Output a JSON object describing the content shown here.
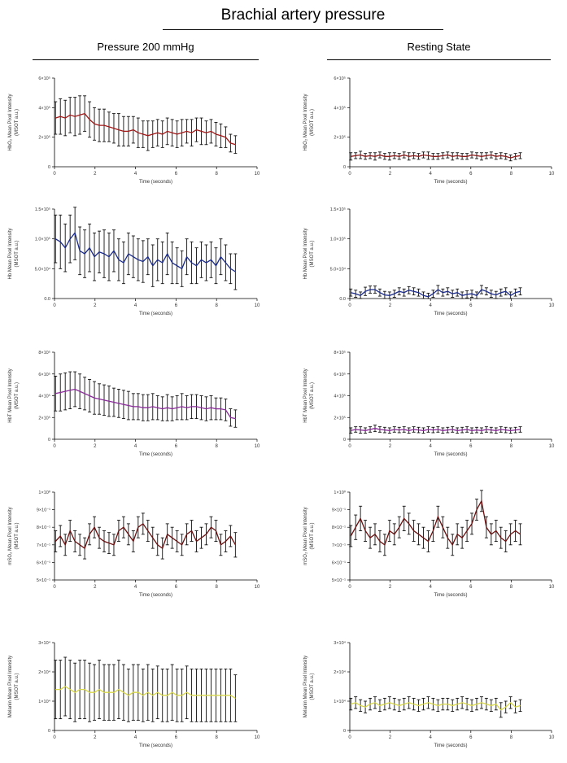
{
  "title": "Brachial artery pressure",
  "columns": [
    "Pressure 200 mmHg",
    "Resting State"
  ],
  "chart_data": [
    {
      "type": "line",
      "column": 0,
      "color": "#a01818",
      "ylabel": [
        "HbO₂ Mean Pixel Intensity",
        "(MSOT a.u.)"
      ],
      "xlabel": "Time (seconds)",
      "xlim": [
        0,
        10
      ],
      "ylim": [
        0,
        6
      ],
      "x_ticks": [
        "0",
        "2",
        "4",
        "6",
        "8",
        "10"
      ],
      "y_ticks": [
        "0",
        "2×10⁵",
        "4×10⁵",
        "6×10⁵"
      ],
      "y_tick_values": [
        0,
        2,
        4,
        6
      ],
      "series_y": [
        3.3,
        3.4,
        3.3,
        3.5,
        3.4,
        3.5,
        3.6,
        3.2,
        2.9,
        2.8,
        2.8,
        2.7,
        2.6,
        2.5,
        2.4,
        2.4,
        2.5,
        2.3,
        2.2,
        2.1,
        2.2,
        2.3,
        2.2,
        2.4,
        2.3,
        2.2,
        2.3,
        2.4,
        2.3,
        2.5,
        2.4,
        2.3,
        2.4,
        2.2,
        2.1,
        2.0,
        1.6,
        1.5
      ],
      "err": [
        1.1,
        1.2,
        1.2,
        1.2,
        1.3,
        1.3,
        1.2,
        1.2,
        1.1,
        1.1,
        1.1,
        1.0,
        1.0,
        1.1,
        1.0,
        1.0,
        0.9,
        1.0,
        0.9,
        1.0,
        0.9,
        0.9,
        0.9,
        0.9,
        0.9,
        0.9,
        0.9,
        0.8,
        0.9,
        0.8,
        0.9,
        0.8,
        0.8,
        0.8,
        0.8,
        0.7,
        0.6,
        0.6
      ]
    },
    {
      "type": "line",
      "column": 1,
      "color": "#8b1a1a",
      "ylabel": [
        "HbO₂ Mean Pixel Intensity",
        "(MSOT a.u.)"
      ],
      "xlabel": "Time (seconds)",
      "xlim": [
        0,
        10
      ],
      "ylim": [
        0,
        6
      ],
      "x_ticks": [
        "0",
        "2",
        "4",
        "6",
        "8",
        "10"
      ],
      "y_ticks": [
        "0",
        "2×10⁵",
        "4×10⁵",
        "6×10⁵"
      ],
      "y_tick_values": [
        0,
        2,
        4,
        6
      ],
      "series_y": [
        0.7,
        0.75,
        0.8,
        0.7,
        0.75,
        0.7,
        0.8,
        0.7,
        0.7,
        0.75,
        0.7,
        0.8,
        0.7,
        0.75,
        0.7,
        0.8,
        0.75,
        0.7,
        0.7,
        0.75,
        0.8,
        0.7,
        0.75,
        0.7,
        0.7,
        0.8,
        0.75,
        0.7,
        0.75,
        0.8,
        0.7,
        0.75,
        0.7,
        0.6,
        0.7,
        0.75
      ],
      "err": [
        0.25,
        0.2,
        0.25,
        0.2,
        0.2,
        0.25,
        0.2,
        0.2,
        0.25,
        0.2,
        0.2,
        0.2,
        0.25,
        0.2,
        0.2,
        0.2,
        0.25,
        0.2,
        0.2,
        0.2,
        0.2,
        0.25,
        0.2,
        0.2,
        0.2,
        0.2,
        0.2,
        0.25,
        0.2,
        0.2,
        0.2,
        0.2,
        0.2,
        0.2,
        0.2,
        0.2
      ]
    },
    {
      "type": "line",
      "column": 0,
      "color": "#1a2a8a",
      "ylabel": [
        "Hb Mean Pixel Intensity",
        "(MSOT a.u.)"
      ],
      "xlabel": "Time (seconds)",
      "xlim": [
        0,
        10
      ],
      "ylim": [
        0,
        1.5
      ],
      "x_ticks": [
        "0",
        "2",
        "4",
        "6",
        "8",
        "10"
      ],
      "y_ticks": [
        "0.0",
        "5.0×10⁴",
        "1.0×10⁵",
        "1.5×10⁵"
      ],
      "y_tick_values": [
        0,
        0.5,
        1.0,
        1.5
      ],
      "series_y": [
        1.0,
        0.95,
        0.85,
        1.0,
        1.1,
        0.8,
        0.75,
        0.85,
        0.7,
        0.78,
        0.75,
        0.7,
        0.8,
        0.65,
        0.6,
        0.75,
        0.7,
        0.65,
        0.62,
        0.7,
        0.55,
        0.65,
        0.6,
        0.75,
        0.6,
        0.55,
        0.5,
        0.7,
        0.6,
        0.55,
        0.65,
        0.6,
        0.65,
        0.55,
        0.7,
        0.6,
        0.5,
        0.45
      ],
      "err": [
        0.4,
        0.45,
        0.4,
        0.4,
        0.45,
        0.4,
        0.4,
        0.4,
        0.4,
        0.35,
        0.4,
        0.4,
        0.35,
        0.35,
        0.35,
        0.35,
        0.35,
        0.35,
        0.35,
        0.3,
        0.35,
        0.35,
        0.35,
        0.35,
        0.35,
        0.3,
        0.3,
        0.3,
        0.35,
        0.3,
        0.3,
        0.3,
        0.3,
        0.3,
        0.3,
        0.3,
        0.25,
        0.3
      ]
    },
    {
      "type": "line",
      "column": 1,
      "color": "#1a2a8a",
      "ylabel": [
        "Hb Mean Pixel Intensity",
        "(MSOT a.u.)"
      ],
      "xlabel": "Time (seconds)",
      "xlim": [
        0,
        10
      ],
      "ylim": [
        0,
        1.5
      ],
      "x_ticks": [
        "0",
        "2",
        "4",
        "6",
        "8",
        "10"
      ],
      "y_ticks": [
        "0.0",
        "5.0×10⁴",
        "1.0×10⁵",
        "1.5×10⁵"
      ],
      "y_tick_values": [
        0,
        0.5,
        1.0,
        1.5
      ],
      "series_y": [
        0.1,
        0.08,
        0.05,
        0.12,
        0.15,
        0.15,
        0.1,
        0.06,
        0.05,
        0.08,
        0.12,
        0.1,
        0.14,
        0.12,
        0.1,
        0.05,
        0.03,
        0.08,
        0.15,
        0.1,
        0.12,
        0.08,
        0.1,
        0.05,
        0.07,
        0.08,
        0.05,
        0.15,
        0.12,
        0.08,
        0.06,
        0.1,
        0.12,
        0.05,
        0.1,
        0.12
      ],
      "err": [
        0.06,
        0.06,
        0.06,
        0.07,
        0.06,
        0.06,
        0.06,
        0.06,
        0.06,
        0.06,
        0.06,
        0.06,
        0.06,
        0.06,
        0.06,
        0.06,
        0.06,
        0.06,
        0.07,
        0.06,
        0.06,
        0.06,
        0.06,
        0.06,
        0.06,
        0.06,
        0.06,
        0.07,
        0.06,
        0.06,
        0.06,
        0.06,
        0.06,
        0.06,
        0.06,
        0.06
      ]
    },
    {
      "type": "line",
      "column": 0,
      "color": "#8a2a9a",
      "ylabel": [
        "HbT Mean Pixel Intensity",
        "(MSOT a.u.)"
      ],
      "xlabel": "Time (seconds)",
      "xlim": [
        0,
        10
      ],
      "ylim": [
        0,
        8
      ],
      "x_ticks": [
        "0",
        "2",
        "4",
        "6",
        "8",
        "10"
      ],
      "y_ticks": [
        "0",
        "2×10⁵",
        "4×10⁵",
        "6×10⁵",
        "8×10⁵"
      ],
      "y_tick_values": [
        0,
        2,
        4,
        6,
        8
      ],
      "series_y": [
        4.2,
        4.3,
        4.4,
        4.5,
        4.6,
        4.4,
        4.2,
        4.0,
        3.8,
        3.7,
        3.6,
        3.5,
        3.4,
        3.3,
        3.2,
        3.1,
        3.0,
        3.0,
        2.9,
        2.9,
        3.0,
        2.9,
        2.8,
        2.9,
        2.8,
        2.9,
        3.0,
        2.9,
        3.0,
        3.0,
        2.9,
        2.8,
        2.9,
        2.8,
        2.8,
        2.7,
        2.0,
        1.9
      ],
      "err": [
        1.6,
        1.7,
        1.7,
        1.7,
        1.6,
        1.6,
        1.5,
        1.5,
        1.5,
        1.4,
        1.4,
        1.4,
        1.3,
        1.3,
        1.3,
        1.3,
        1.2,
        1.2,
        1.2,
        1.2,
        1.2,
        1.1,
        1.1,
        1.2,
        1.1,
        1.1,
        1.2,
        1.1,
        1.1,
        1.1,
        1.1,
        1.1,
        1.1,
        1.0,
        1.0,
        1.0,
        0.8,
        0.8
      ]
    },
    {
      "type": "line",
      "column": 1,
      "color": "#8a2a9a",
      "ylabel": [
        "HbT Mean Pixel Intensity",
        "(MSOT a.u.)"
      ],
      "xlabel": "Time (seconds)",
      "xlim": [
        0,
        10
      ],
      "ylim": [
        0,
        8
      ],
      "x_ticks": [
        "0",
        "2",
        "4",
        "6",
        "8",
        "10"
      ],
      "y_ticks": [
        "0",
        "2×10⁵",
        "4×10⁵",
        "6×10⁵",
        "8×10⁵"
      ],
      "y_tick_values": [
        0,
        2,
        4,
        6,
        8
      ],
      "series_y": [
        0.8,
        0.9,
        0.85,
        0.8,
        0.9,
        1.0,
        0.9,
        0.85,
        0.8,
        0.9,
        0.85,
        0.9,
        0.8,
        0.9,
        0.85,
        0.8,
        0.9,
        0.85,
        0.9,
        0.8,
        0.85,
        0.9,
        0.8,
        0.85,
        0.9,
        0.8,
        0.85,
        0.8,
        0.9,
        0.85,
        0.8,
        0.9,
        0.85,
        0.8,
        0.85,
        0.9
      ],
      "err": [
        0.25,
        0.25,
        0.3,
        0.25,
        0.25,
        0.3,
        0.25,
        0.25,
        0.25,
        0.25,
        0.25,
        0.25,
        0.25,
        0.25,
        0.25,
        0.25,
        0.25,
        0.25,
        0.25,
        0.25,
        0.25,
        0.25,
        0.25,
        0.25,
        0.25,
        0.25,
        0.25,
        0.25,
        0.25,
        0.25,
        0.25,
        0.25,
        0.25,
        0.25,
        0.25,
        0.25
      ]
    },
    {
      "type": "line",
      "column": 0,
      "color": "#6a1010",
      "ylabel": [
        "mSO₂ Mean Pixel Intensity",
        "(MSOT a.u.)"
      ],
      "xlabel": "Time (seconds)",
      "xlim": [
        0,
        10
      ],
      "ylim": [
        0.5,
        1.0
      ],
      "x_ticks": [
        "0",
        "2",
        "4",
        "6",
        "8",
        "10"
      ],
      "y_ticks": [
        "5×10⁻¹",
        "6×10⁻¹",
        "7×10⁻¹",
        "8×10⁻¹",
        "9×10⁻¹",
        "1×10⁰"
      ],
      "y_tick_values": [
        0.5,
        0.6,
        0.7,
        0.8,
        0.9,
        1.0
      ],
      "series_y": [
        0.72,
        0.75,
        0.7,
        0.78,
        0.72,
        0.7,
        0.68,
        0.76,
        0.8,
        0.74,
        0.72,
        0.71,
        0.7,
        0.78,
        0.8,
        0.76,
        0.72,
        0.8,
        0.82,
        0.78,
        0.74,
        0.7,
        0.68,
        0.76,
        0.74,
        0.72,
        0.7,
        0.76,
        0.78,
        0.72,
        0.74,
        0.76,
        0.8,
        0.78,
        0.7,
        0.72,
        0.75,
        0.7
      ],
      "err": [
        0.06,
        0.06,
        0.06,
        0.06,
        0.06,
        0.06,
        0.06,
        0.06,
        0.06,
        0.06,
        0.06,
        0.06,
        0.06,
        0.06,
        0.06,
        0.06,
        0.06,
        0.06,
        0.06,
        0.06,
        0.06,
        0.06,
        0.06,
        0.06,
        0.06,
        0.06,
        0.06,
        0.06,
        0.06,
        0.06,
        0.06,
        0.06,
        0.06,
        0.06,
        0.06,
        0.06,
        0.06,
        0.07
      ]
    },
    {
      "type": "line",
      "column": 1,
      "color": "#6a1010",
      "ylabel": [
        "mSO₂ Mean Pixel Intensity",
        "(MSOT a.u.)"
      ],
      "xlabel": "Time (seconds)",
      "xlim": [
        0,
        10
      ],
      "ylim": [
        0.5,
        1.0
      ],
      "x_ticks": [
        "0",
        "2",
        "4",
        "6",
        "8",
        "10"
      ],
      "y_ticks": [
        "5×10⁻¹",
        "6×10⁻¹",
        "7×10⁻¹",
        "8×10⁻¹",
        "9×10⁻¹",
        "1×10⁰"
      ],
      "y_tick_values": [
        0.5,
        0.6,
        0.7,
        0.8,
        0.9,
        1.0
      ],
      "series_y": [
        0.75,
        0.8,
        0.85,
        0.78,
        0.74,
        0.76,
        0.72,
        0.7,
        0.78,
        0.76,
        0.8,
        0.85,
        0.82,
        0.78,
        0.76,
        0.74,
        0.72,
        0.78,
        0.86,
        0.8,
        0.74,
        0.7,
        0.76,
        0.74,
        0.78,
        0.82,
        0.9,
        0.95,
        0.8,
        0.76,
        0.78,
        0.74,
        0.72,
        0.76,
        0.78,
        0.76
      ],
      "err": [
        0.06,
        0.07,
        0.07,
        0.06,
        0.06,
        0.06,
        0.06,
        0.06,
        0.06,
        0.06,
        0.06,
        0.07,
        0.06,
        0.06,
        0.06,
        0.06,
        0.06,
        0.06,
        0.06,
        0.06,
        0.06,
        0.06,
        0.06,
        0.06,
        0.06,
        0.06,
        0.06,
        0.06,
        0.06,
        0.06,
        0.06,
        0.06,
        0.06,
        0.06,
        0.06,
        0.06
      ]
    },
    {
      "type": "line",
      "column": 0,
      "color": "#d8d84a",
      "ylabel": [
        "Melanin Mean Pixel Intensity",
        "(MSOT a.u.)"
      ],
      "xlabel": "Time (seconds)",
      "xlim": [
        0,
        10
      ],
      "ylim": [
        0,
        3
      ],
      "x_ticks": [
        "0",
        "2",
        "4",
        "6",
        "8",
        "10"
      ],
      "y_ticks": [
        "0",
        "1×10⁴",
        "2×10⁴",
        "3×10⁴"
      ],
      "y_tick_values": [
        0,
        1,
        2,
        3
      ],
      "series_y": [
        1.4,
        1.4,
        1.5,
        1.4,
        1.3,
        1.4,
        1.4,
        1.3,
        1.3,
        1.4,
        1.3,
        1.3,
        1.3,
        1.4,
        1.3,
        1.2,
        1.3,
        1.3,
        1.2,
        1.3,
        1.2,
        1.3,
        1.2,
        1.2,
        1.3,
        1.2,
        1.2,
        1.3,
        1.2,
        1.2,
        1.2,
        1.2,
        1.2,
        1.2,
        1.2,
        1.2,
        1.2,
        1.1
      ],
      "err": [
        1.0,
        1.0,
        1.0,
        1.0,
        1.0,
        1.0,
        1.0,
        1.0,
        0.95,
        1.0,
        0.95,
        0.95,
        0.95,
        1.0,
        0.95,
        0.9,
        0.95,
        0.95,
        0.9,
        0.95,
        0.9,
        0.9,
        0.9,
        0.9,
        0.95,
        0.9,
        0.9,
        0.9,
        0.9,
        0.9,
        0.9,
        0.9,
        0.9,
        0.9,
        0.9,
        0.9,
        0.9,
        0.8
      ]
    },
    {
      "type": "line",
      "column": 1,
      "color": "#d8d84a",
      "ylabel": [
        "Melanin Mean Pixel Intensity",
        "(MSOT a.u.)"
      ],
      "xlabel": "Time (seconds)",
      "xlim": [
        0,
        10
      ],
      "ylim": [
        0,
        3
      ],
      "x_ticks": [
        "0",
        "2",
        "4",
        "6",
        "8",
        "10"
      ],
      "y_ticks": [
        "0",
        "1×10⁴",
        "2×10⁴",
        "3×10⁴"
      ],
      "y_tick_values": [
        0,
        1,
        2,
        3
      ],
      "series_y": [
        0.9,
        0.95,
        0.85,
        0.8,
        0.9,
        0.95,
        0.85,
        0.9,
        0.95,
        0.9,
        0.85,
        0.9,
        0.95,
        0.9,
        0.85,
        0.9,
        0.95,
        0.9,
        0.85,
        0.9,
        0.9,
        0.85,
        0.9,
        0.95,
        0.9,
        0.85,
        0.9,
        0.95,
        0.9,
        0.85,
        0.9,
        0.7,
        0.8,
        0.95,
        0.8,
        0.85
      ],
      "err": [
        0.2,
        0.2,
        0.2,
        0.2,
        0.2,
        0.2,
        0.2,
        0.2,
        0.2,
        0.2,
        0.2,
        0.2,
        0.2,
        0.2,
        0.2,
        0.2,
        0.2,
        0.2,
        0.2,
        0.2,
        0.2,
        0.2,
        0.2,
        0.2,
        0.2,
        0.2,
        0.2,
        0.2,
        0.2,
        0.2,
        0.2,
        0.25,
        0.2,
        0.2,
        0.2,
        0.2
      ]
    }
  ]
}
